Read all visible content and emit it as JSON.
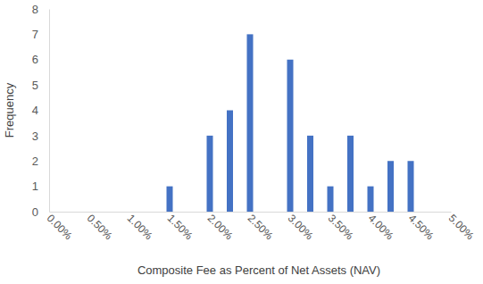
{
  "chart_data": {
    "type": "bar",
    "x_label": "Composite Fee as Percent of Net Assets (NAV)",
    "y_label": "Frequency",
    "x": [
      1.5,
      2,
      2.25,
      2.5,
      3,
      3.25,
      3.5,
      3.75,
      4,
      4.25,
      4.5
    ],
    "values": [
      1,
      3,
      4,
      7,
      6,
      3,
      1,
      3,
      1,
      2,
      2
    ],
    "color": "#4472c4",
    "xlim": [
      0,
      5
    ],
    "xticks": [
      {
        "value": 0,
        "label": "0.00%"
      },
      {
        "value": 0.5,
        "label": "0.50%"
      },
      {
        "value": 1,
        "label": "1.00%"
      },
      {
        "value": 1.5,
        "label": "1.50%"
      },
      {
        "value": 2,
        "label": "2.00%"
      },
      {
        "value": 2.5,
        "label": "2.50%"
      },
      {
        "value": 3,
        "label": "3.00%"
      },
      {
        "value": 3.5,
        "label": "3.50%"
      },
      {
        "value": 4,
        "label": "4.00%"
      },
      {
        "value": 4.5,
        "label": "4.50%"
      },
      {
        "value": 5,
        "label": "5.00%"
      }
    ],
    "ylim": [
      0,
      8
    ],
    "yticks": [
      0,
      1,
      2,
      3,
      4,
      5,
      6,
      7,
      8
    ],
    "grid": false
  }
}
